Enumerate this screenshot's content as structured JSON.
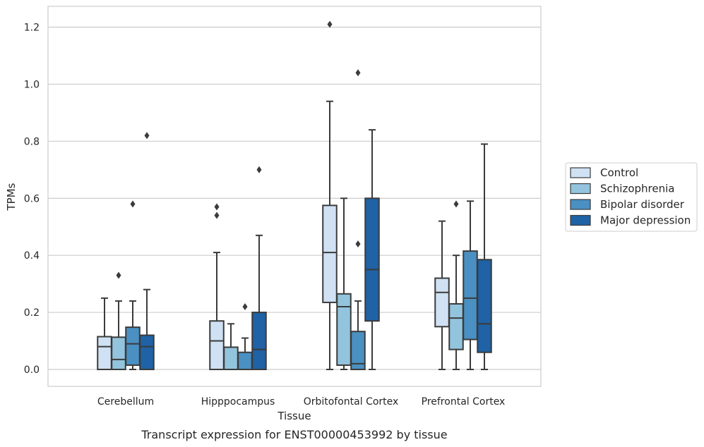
{
  "chart_data": {
    "type": "box",
    "title": "",
    "caption": "Transcript expression for ENST00000453992 by tissue",
    "xlabel": "Tissue",
    "ylabel": "TPMs",
    "ylim": [
      -0.06,
      1.27
    ],
    "yticks": [
      0.0,
      0.2,
      0.4,
      0.6,
      0.8,
      1.0,
      1.2
    ],
    "grid": true,
    "legend_placement": "right",
    "categories": [
      "Cerebellum",
      "Hipppocampus",
      "Orbitofontal Cortex",
      "Prefrontal Cortex"
    ],
    "series": [
      {
        "name": "Control",
        "color": "#cfe1f2",
        "boxes": [
          {
            "whislo": 0.0,
            "q1": 0.0,
            "med": 0.08,
            "q3": 0.115,
            "whishi": 0.25,
            "fliers": []
          },
          {
            "whislo": 0.0,
            "q1": 0.0,
            "med": 0.1,
            "q3": 0.17,
            "whishi": 0.41,
            "fliers": [
              0.54,
              0.57
            ]
          },
          {
            "whislo": 0.0,
            "q1": 0.235,
            "med": 0.41,
            "q3": 0.575,
            "whishi": 0.94,
            "fliers": [
              1.21
            ]
          },
          {
            "whislo": 0.0,
            "q1": 0.15,
            "med": 0.27,
            "q3": 0.32,
            "whishi": 0.52,
            "fliers": []
          }
        ]
      },
      {
        "name": "Schizophrenia",
        "color": "#93c4de",
        "boxes": [
          {
            "whislo": 0.0,
            "q1": 0.0,
            "med": 0.035,
            "q3": 0.113,
            "whishi": 0.24,
            "fliers": [
              0.33
            ]
          },
          {
            "whislo": 0.0,
            "q1": 0.0,
            "med": 0.0,
            "q3": 0.078,
            "whishi": 0.16,
            "fliers": []
          },
          {
            "whislo": 0.0,
            "q1": 0.015,
            "med": 0.22,
            "q3": 0.265,
            "whishi": 0.6,
            "fliers": []
          },
          {
            "whislo": 0.0,
            "q1": 0.07,
            "med": 0.18,
            "q3": 0.23,
            "whishi": 0.4,
            "fliers": [
              0.58
            ]
          }
        ]
      },
      {
        "name": "Bipolar disorder",
        "color": "#4a90c2",
        "boxes": [
          {
            "whislo": 0.0,
            "q1": 0.015,
            "med": 0.09,
            "q3": 0.148,
            "whishi": 0.24,
            "fliers": [
              0.58
            ]
          },
          {
            "whislo": 0.0,
            "q1": 0.0,
            "med": 0.0,
            "q3": 0.06,
            "whishi": 0.11,
            "fliers": [
              0.22
            ]
          },
          {
            "whislo": 0.0,
            "q1": 0.0,
            "med": 0.02,
            "q3": 0.133,
            "whishi": 0.24,
            "fliers": [
              0.44,
              1.04
            ]
          },
          {
            "whislo": 0.0,
            "q1": 0.105,
            "med": 0.25,
            "q3": 0.415,
            "whishi": 0.59,
            "fliers": []
          }
        ]
      },
      {
        "name": "Major depression",
        "color": "#1f62a5",
        "boxes": [
          {
            "whislo": 0.0,
            "q1": 0.0,
            "med": 0.08,
            "q3": 0.12,
            "whishi": 0.28,
            "fliers": [
              0.82
            ]
          },
          {
            "whislo": 0.0,
            "q1": 0.0,
            "med": 0.07,
            "q3": 0.2,
            "whishi": 0.47,
            "fliers": [
              0.7
            ]
          },
          {
            "whislo": 0.0,
            "q1": 0.17,
            "med": 0.35,
            "q3": 0.6,
            "whishi": 0.84,
            "fliers": []
          },
          {
            "whislo": 0.0,
            "q1": 0.06,
            "med": 0.16,
            "q3": 0.385,
            "whishi": 0.79,
            "fliers": []
          }
        ]
      }
    ]
  }
}
